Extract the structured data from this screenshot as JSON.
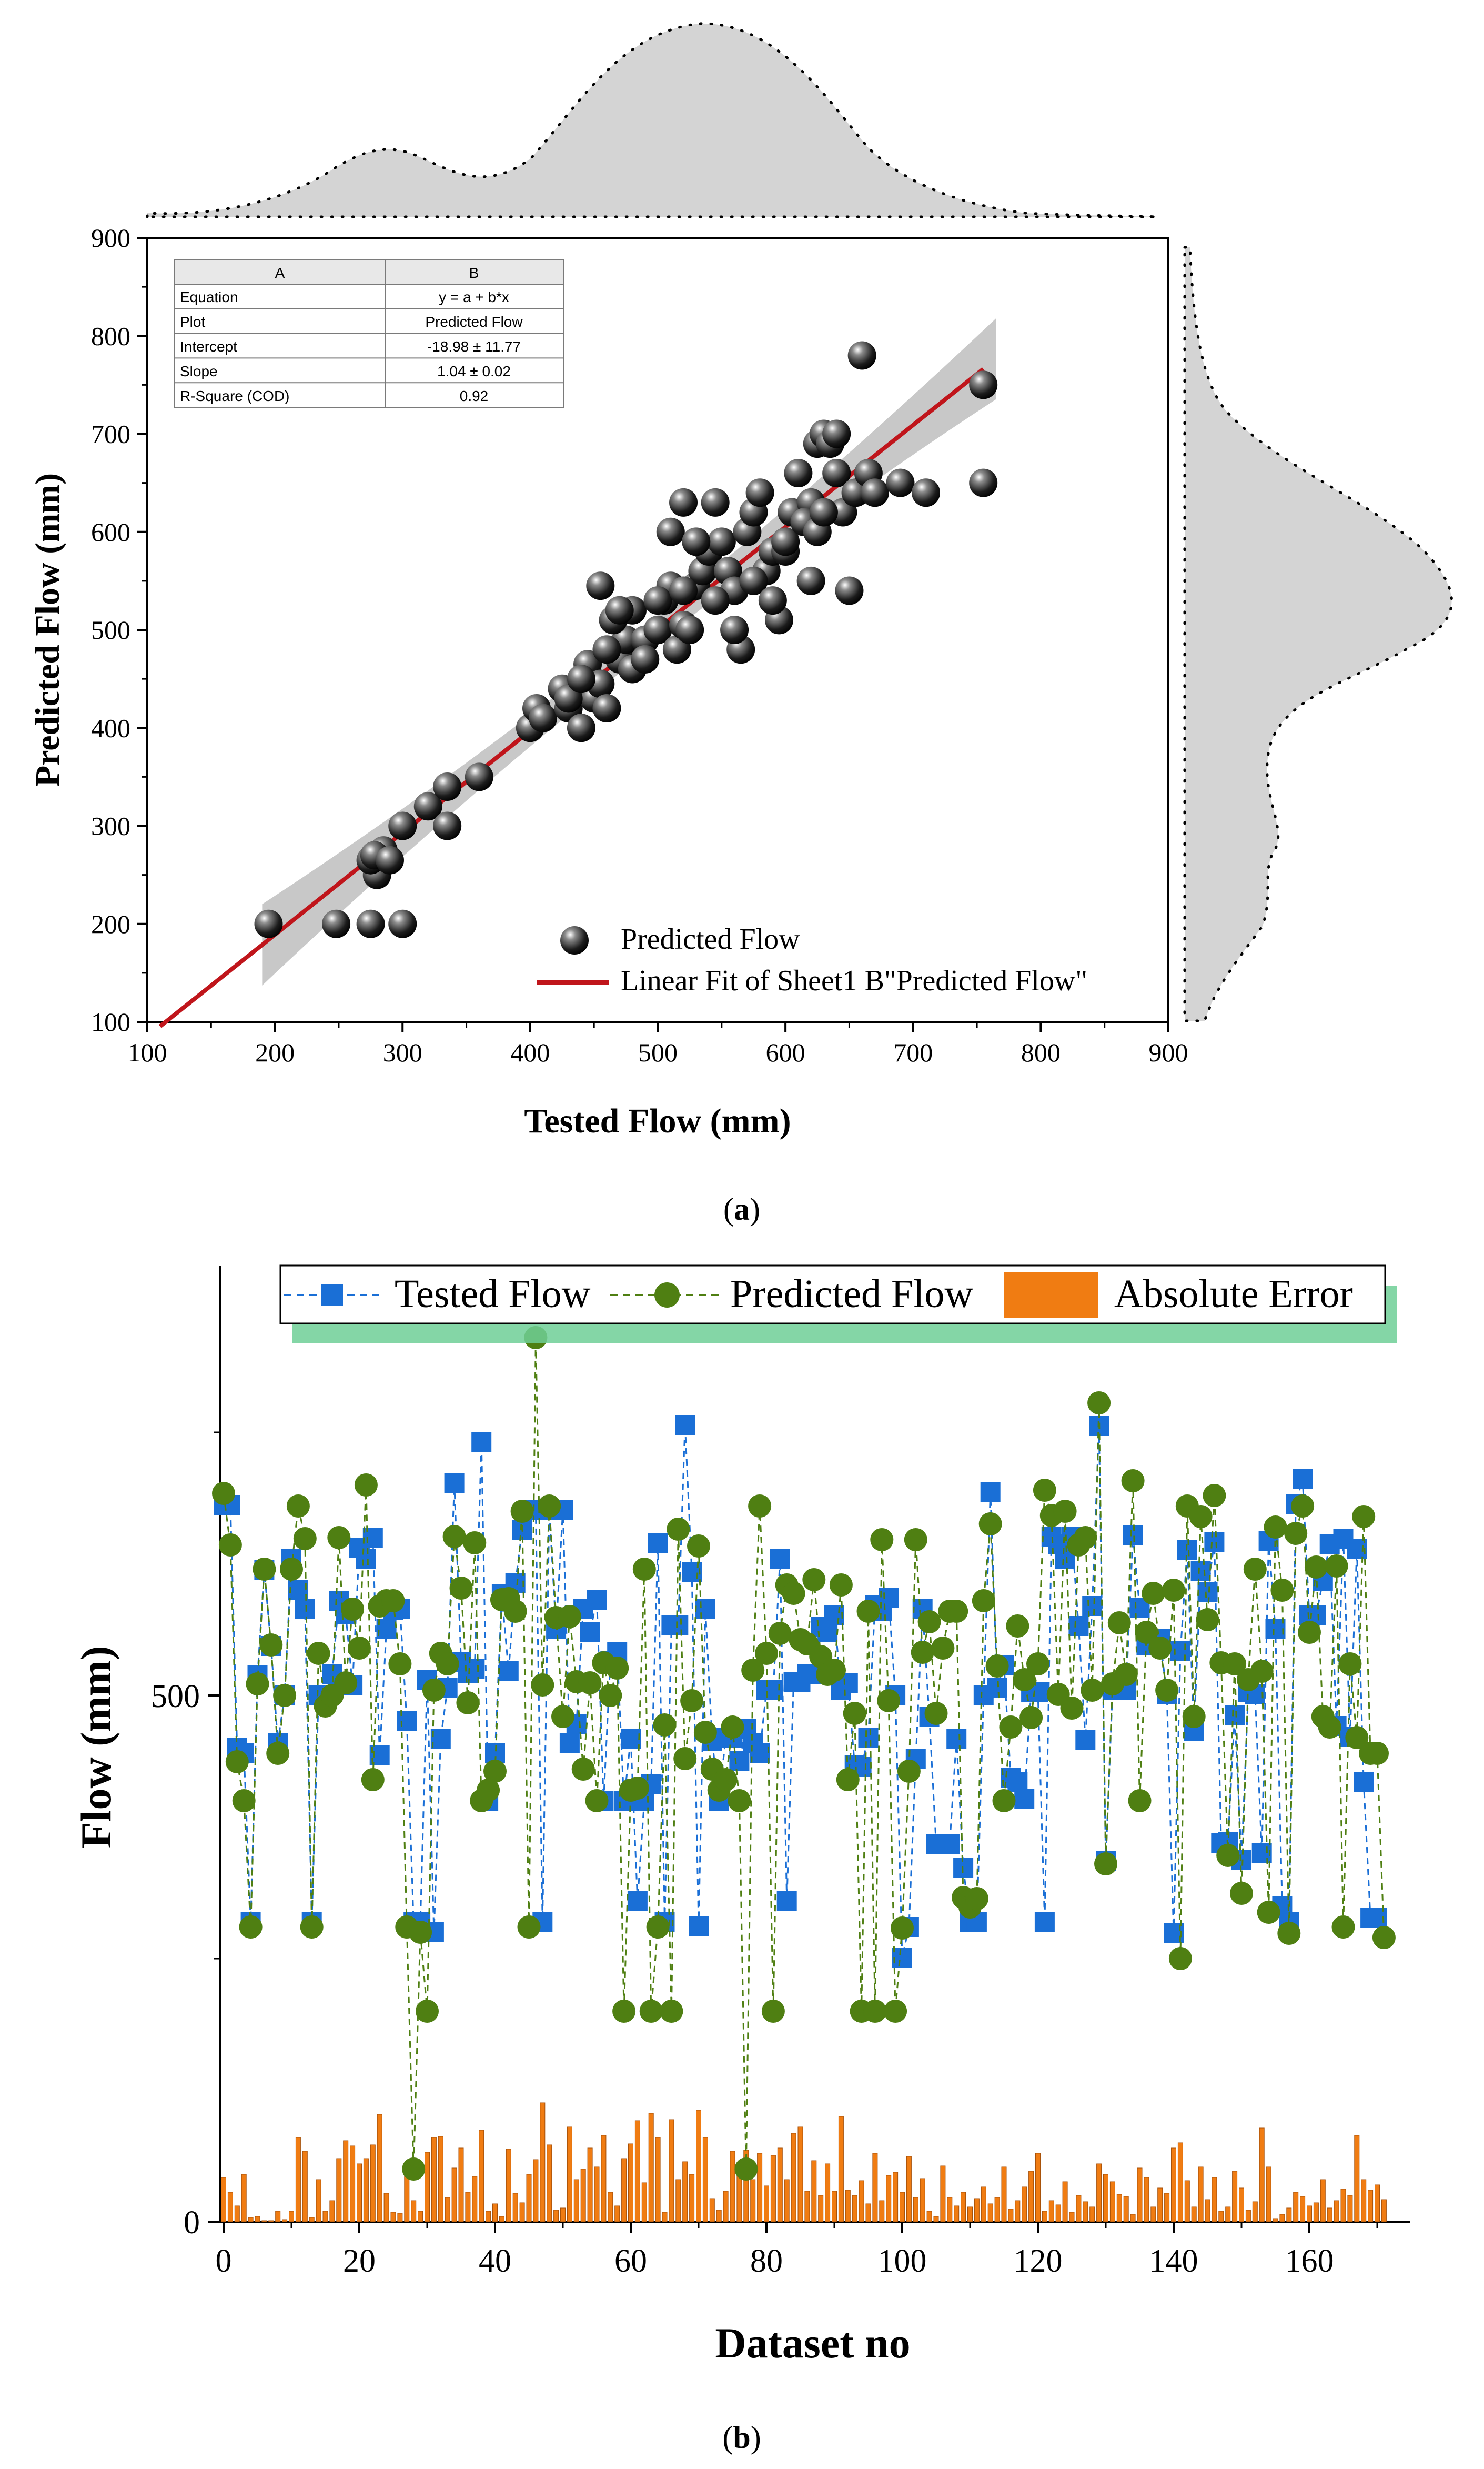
{
  "panel_a": {
    "caption_open": "(",
    "caption_letter": "a",
    "caption_close": ")",
    "chart_data": {
      "type": "scatter",
      "title": "",
      "xlabel": "Tested Flow (mm)",
      "ylabel": "Predicted Flow (mm)",
      "xlim": [
        100,
        900
      ],
      "ylim": [
        100,
        900
      ],
      "xticks": [
        100,
        200,
        300,
        400,
        500,
        600,
        700,
        800,
        900
      ],
      "yticks": [
        100,
        200,
        300,
        400,
        500,
        600,
        700,
        800,
        900
      ],
      "legend": [
        "Predicted Flow",
        "Linear Fit of Sheet1 B\"Predicted Flow\""
      ],
      "legend_position": "bottom-right",
      "fit": {
        "intercept": -18.98,
        "slope": 1.04,
        "x_range": [
          110,
          755
        ],
        "band_x_range": [
          190,
          765
        ]
      },
      "points": [
        [
          195,
          200
        ],
        [
          248,
          200
        ],
        [
          275,
          200
        ],
        [
          300,
          200
        ],
        [
          280,
          250
        ],
        [
          275,
          265
        ],
        [
          285,
          275
        ],
        [
          278,
          270
        ],
        [
          290,
          265
        ],
        [
          300,
          300
        ],
        [
          320,
          320
        ],
        [
          335,
          340
        ],
        [
          335,
          300
        ],
        [
          360,
          350
        ],
        [
          400,
          400
        ],
        [
          405,
          420
        ],
        [
          410,
          410
        ],
        [
          425,
          440
        ],
        [
          430,
          420
        ],
        [
          440,
          400
        ],
        [
          445,
          465
        ],
        [
          450,
          430
        ],
        [
          455,
          445
        ],
        [
          460,
          420
        ],
        [
          470,
          470
        ],
        [
          475,
          490
        ],
        [
          465,
          510
        ],
        [
          455,
          545
        ],
        [
          480,
          520
        ],
        [
          470,
          520
        ],
        [
          490,
          490
        ],
        [
          500,
          500
        ],
        [
          505,
          530
        ],
        [
          510,
          545
        ],
        [
          515,
          480
        ],
        [
          520,
          505
        ],
        [
          525,
          500
        ],
        [
          530,
          545
        ],
        [
          535,
          560
        ],
        [
          540,
          580
        ],
        [
          545,
          630
        ],
        [
          550,
          590
        ],
        [
          555,
          560
        ],
        [
          560,
          540
        ],
        [
          565,
          480
        ],
        [
          570,
          600
        ],
        [
          575,
          620
        ],
        [
          580,
          640
        ],
        [
          585,
          560
        ],
        [
          590,
          580
        ],
        [
          595,
          510
        ],
        [
          600,
          580
        ],
        [
          605,
          620
        ],
        [
          610,
          660
        ],
        [
          620,
          630
        ],
        [
          625,
          690
        ],
        [
          630,
          700
        ],
        [
          635,
          690
        ],
        [
          640,
          660
        ],
        [
          645,
          620
        ],
        [
          650,
          540
        ],
        [
          655,
          640
        ],
        [
          660,
          780
        ],
        [
          665,
          660
        ],
        [
          670,
          640
        ],
        [
          690,
          650
        ],
        [
          710,
          640
        ],
        [
          755,
          750
        ],
        [
          755,
          650
        ],
        [
          510,
          600
        ],
        [
          520,
          630
        ],
        [
          530,
          590
        ],
        [
          545,
          530
        ],
        [
          560,
          500
        ],
        [
          575,
          550
        ],
        [
          590,
          530
        ],
        [
          600,
          590
        ],
        [
          615,
          610
        ],
        [
          620,
          550
        ],
        [
          625,
          600
        ],
        [
          630,
          620
        ],
        [
          640,
          700
        ],
        [
          480,
          460
        ],
        [
          490,
          470
        ],
        [
          500,
          530
        ],
        [
          430,
          430
        ],
        [
          440,
          450
        ],
        [
          460,
          480
        ],
        [
          520,
          540
        ]
      ],
      "fit_table": {
        "header": [
          "A",
          "B"
        ],
        "rows": [
          [
            "Equation",
            "y = a + b*x"
          ],
          [
            "Plot",
            "Predicted Flow"
          ],
          [
            "Intercept",
            "-18.98 ± 11.77"
          ],
          [
            "Slope",
            "1.04 ± 0.02"
          ],
          [
            "R-Square (COD)",
            "0.92"
          ]
        ]
      }
    }
  },
  "panel_b": {
    "caption_open": "(",
    "caption_letter": "b",
    "caption_close": ")",
    "chart_data": {
      "type": "line",
      "title": "",
      "xlabel": "Dataset no",
      "ylabel": "Flow (mm)",
      "xlim": [
        0,
        175
      ],
      "ylim": [
        0,
        900
      ],
      "xticks": [
        0,
        20,
        40,
        60,
        80,
        100,
        120,
        140,
        160
      ],
      "yticks": [
        0,
        500
      ],
      "legend_position": "top",
      "series": [
        {
          "name": "Tested Flow",
          "color": "#1a6fd6",
          "marker": "square",
          "dash": true,
          "values": [
            681,
            681,
            450,
            445,
            285,
            519,
            619,
            547,
            455,
            500,
            630,
            600,
            582,
            285,
            500,
            500,
            520,
            590,
            577,
            510,
            640,
            630,
            650,
            443,
            563,
            581,
            582,
            476,
            285,
            285,
            515,
            275,
            459,
            507,
            702,
            532,
            521,
            525,
            741,
            400,
            445,
            596,
            523,
            607,
            657,
            676,
            676,
            285,
            676,
            563,
            676,
            455,
            473,
            582,
            560,
            591,
            400,
            533,
            541,
            400,
            459,
            305,
            400,
            416,
            645,
            285,
            567,
            567,
            757,
            617,
            281,
            582,
            457,
            400,
            460,
            460,
            438,
            468,
            455,
            445,
            505,
            505,
            630,
            305,
            513,
            513,
            520,
            520,
            565,
            560,
            576,
            505,
            512,
            434,
            432,
            460,
            586,
            580,
            593,
            500,
            251,
            280,
            440,
            582,
            480,
            359,
            359,
            359,
            459,
            336,
            285,
            285,
            500,
            693,
            507,
            529,
            422,
            418,
            402,
            503,
            503,
            285,
            651,
            644,
            630,
            651,
            566,
            458,
            585,
            756,
            343,
            505,
            505,
            505,
            652,
            583,
            548,
            548,
            554,
            501,
            274,
            542,
            638,
            466,
            618,
            598,
            646,
            360,
            361,
            481,
            344,
            503,
            501,
            350,
            647,
            563,
            300,
            285,
            682,
            706,
            576,
            576,
            609,
            644,
            471,
            649,
            461,
            639,
            418,
            289,
            289
          ]
        },
        {
          "name": "Predicted Flow",
          "color": "#4f7f12",
          "marker": "circle",
          "dash": true,
          "values": [
            692,
            643,
            437,
            400,
            280,
            511,
            620,
            548,
            445,
            500,
            620,
            680,
            649,
            280,
            540,
            490,
            500,
            650,
            512,
            582,
            545,
            700,
            420,
            585,
            590,
            590,
            530,
            280,
            50,
            275,
            200,
            505,
            540,
            530,
            651,
            602,
            493,
            645,
            400,
            410,
            428,
            591,
            592,
            580,
            675,
            280,
            840,
            510,
            680,
            574,
            480,
            575,
            513,
            430,
            512,
            400,
            531,
            500,
            526,
            200,
            410,
            412,
            620,
            200,
            280,
            472,
            200,
            658,
            440,
            495,
            642,
            465,
            430,
            410,
            420,
            470,
            400,
            50,
            524,
            680,
            540,
            200,
            559,
            605,
            597,
            553,
            549,
            610,
            537,
            520,
            524,
            605,
            420,
            483,
            200,
            580,
            200,
            648,
            495,
            200,
            279,
            428,
            648,
            541,
            570,
            483,
            545,
            580,
            580,
            308,
            299,
            307,
            590,
            663,
            528,
            400,
            470,
            566,
            515,
            479,
            530,
            695,
            671,
            501,
            675,
            488,
            643,
            650,
            505,
            778,
            340,
            511,
            569,
            520,
            704,
            400,
            560,
            597,
            545,
            505,
            600,
            250,
            680,
            480,
            670,
            572,
            690,
            531,
            348,
            530,
            312,
            515,
            620,
            523,
            294,
            660,
            600,
            274,
            654,
            680,
            560,
            622,
            480,
            470,
            623,
            280,
            530,
            460,
            670,
            445,
            445,
            270
          ]
        },
        {
          "name": "Absolute Error",
          "color": "#f07c12",
          "type": "bar",
          "values": [
            42,
            28,
            15,
            45,
            4,
            5,
            1,
            1,
            10,
            2,
            10,
            80,
            67,
            4,
            40,
            10,
            20,
            60,
            77,
            72,
            55,
            60,
            73,
            102,
            27,
            9,
            8,
            53,
            20,
            10,
            66,
            80,
            81,
            23,
            51,
            70,
            28,
            43,
            87,
            10,
            17,
            5,
            69,
            27,
            18,
            45,
            59,
            113,
            73,
            11,
            13,
            90,
            40,
            50,
            70,
            52,
            82,
            28,
            15,
            60,
            74,
            96,
            37,
            103,
            80,
            9,
            97,
            40,
            57,
            45,
            106,
            80,
            22,
            11,
            29,
            67,
            50,
            68,
            40,
            65,
            34,
            63,
            70,
            40,
            84,
            90,
            29,
            58,
            25,
            55,
            29,
            100,
            30,
            25,
            39,
            17,
            65,
            20,
            44,
            47,
            28,
            62,
            23,
            41,
            10,
            5,
            53,
            23,
            15,
            28,
            14,
            22,
            33,
            17,
            23,
            52,
            12,
            20,
            33,
            48,
            65,
            10,
            20,
            16,
            38,
            9,
            25,
            19,
            14,
            55,
            45,
            38,
            26,
            24,
            7,
            51,
            42,
            14,
            32,
            27,
            70,
            75,
            39,
            14,
            52,
            21,
            42,
            10,
            14,
            48,
            32,
            11,
            19,
            89,
            52,
            3,
            7,
            13,
            28,
            24,
            15,
            18,
            40,
            13,
            20,
            31,
            25,
            82,
            40,
            30,
            35,
            21
          ]
        }
      ],
      "legend": [
        "Tested Flow",
        "Predicted Flow",
        "Absolute Error"
      ]
    }
  }
}
